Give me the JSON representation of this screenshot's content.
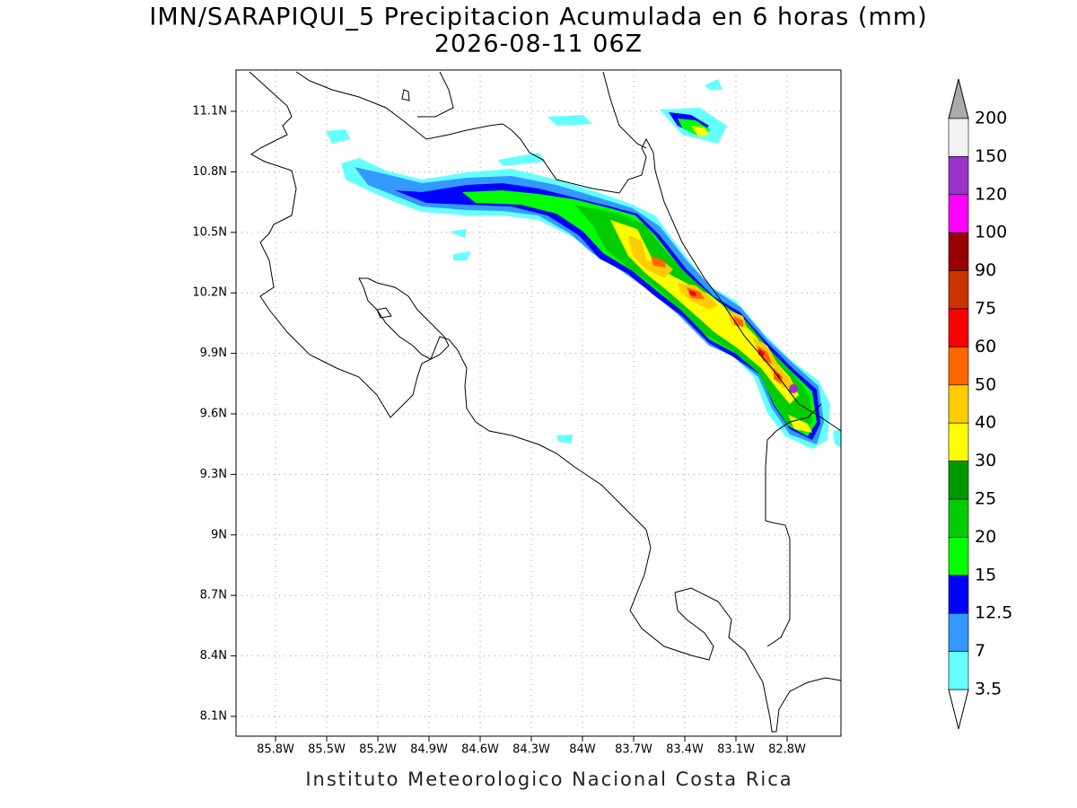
{
  "header": {
    "title": "IMN/SARAPIQUI_5 Precipitacion Acumulada en 6 horas (mm)",
    "subtitle": "2026-08-11 06Z"
  },
  "map": {
    "lon_labels": [
      "85.8W",
      "85.5W",
      "85.2W",
      "84.9W",
      "84.6W",
      "84.3W",
      "84W",
      "83.7W",
      "83.4W",
      "83.1W",
      "82.8W"
    ],
    "lat_labels": [
      "11.1N",
      "10.8N",
      "10.5N",
      "10.2N",
      "9.9N",
      "9.6N",
      "9.3N",
      "9N",
      "8.7N",
      "8.4N",
      "8.1N"
    ]
  },
  "colorbar": {
    "levels": [
      200,
      150,
      120,
      100,
      90,
      75,
      60,
      50,
      40,
      30,
      25,
      20,
      15,
      12.5,
      7,
      3.5
    ],
    "colors": [
      "#f2f2f2",
      "#9933cc",
      "#ff00ff",
      "#990000",
      "#cc3300",
      "#ff0000",
      "#ff6600",
      "#ffcc00",
      "#ffff00",
      "#009900",
      "#00cc00",
      "#00ff00",
      "#0000ff",
      "#3399ff",
      "#66ffff"
    ],
    "over_color": "#aaaaaa",
    "under_color": "#ffffff"
  },
  "footer": "Instituto Meteorologico Nacional Costa Rica"
}
